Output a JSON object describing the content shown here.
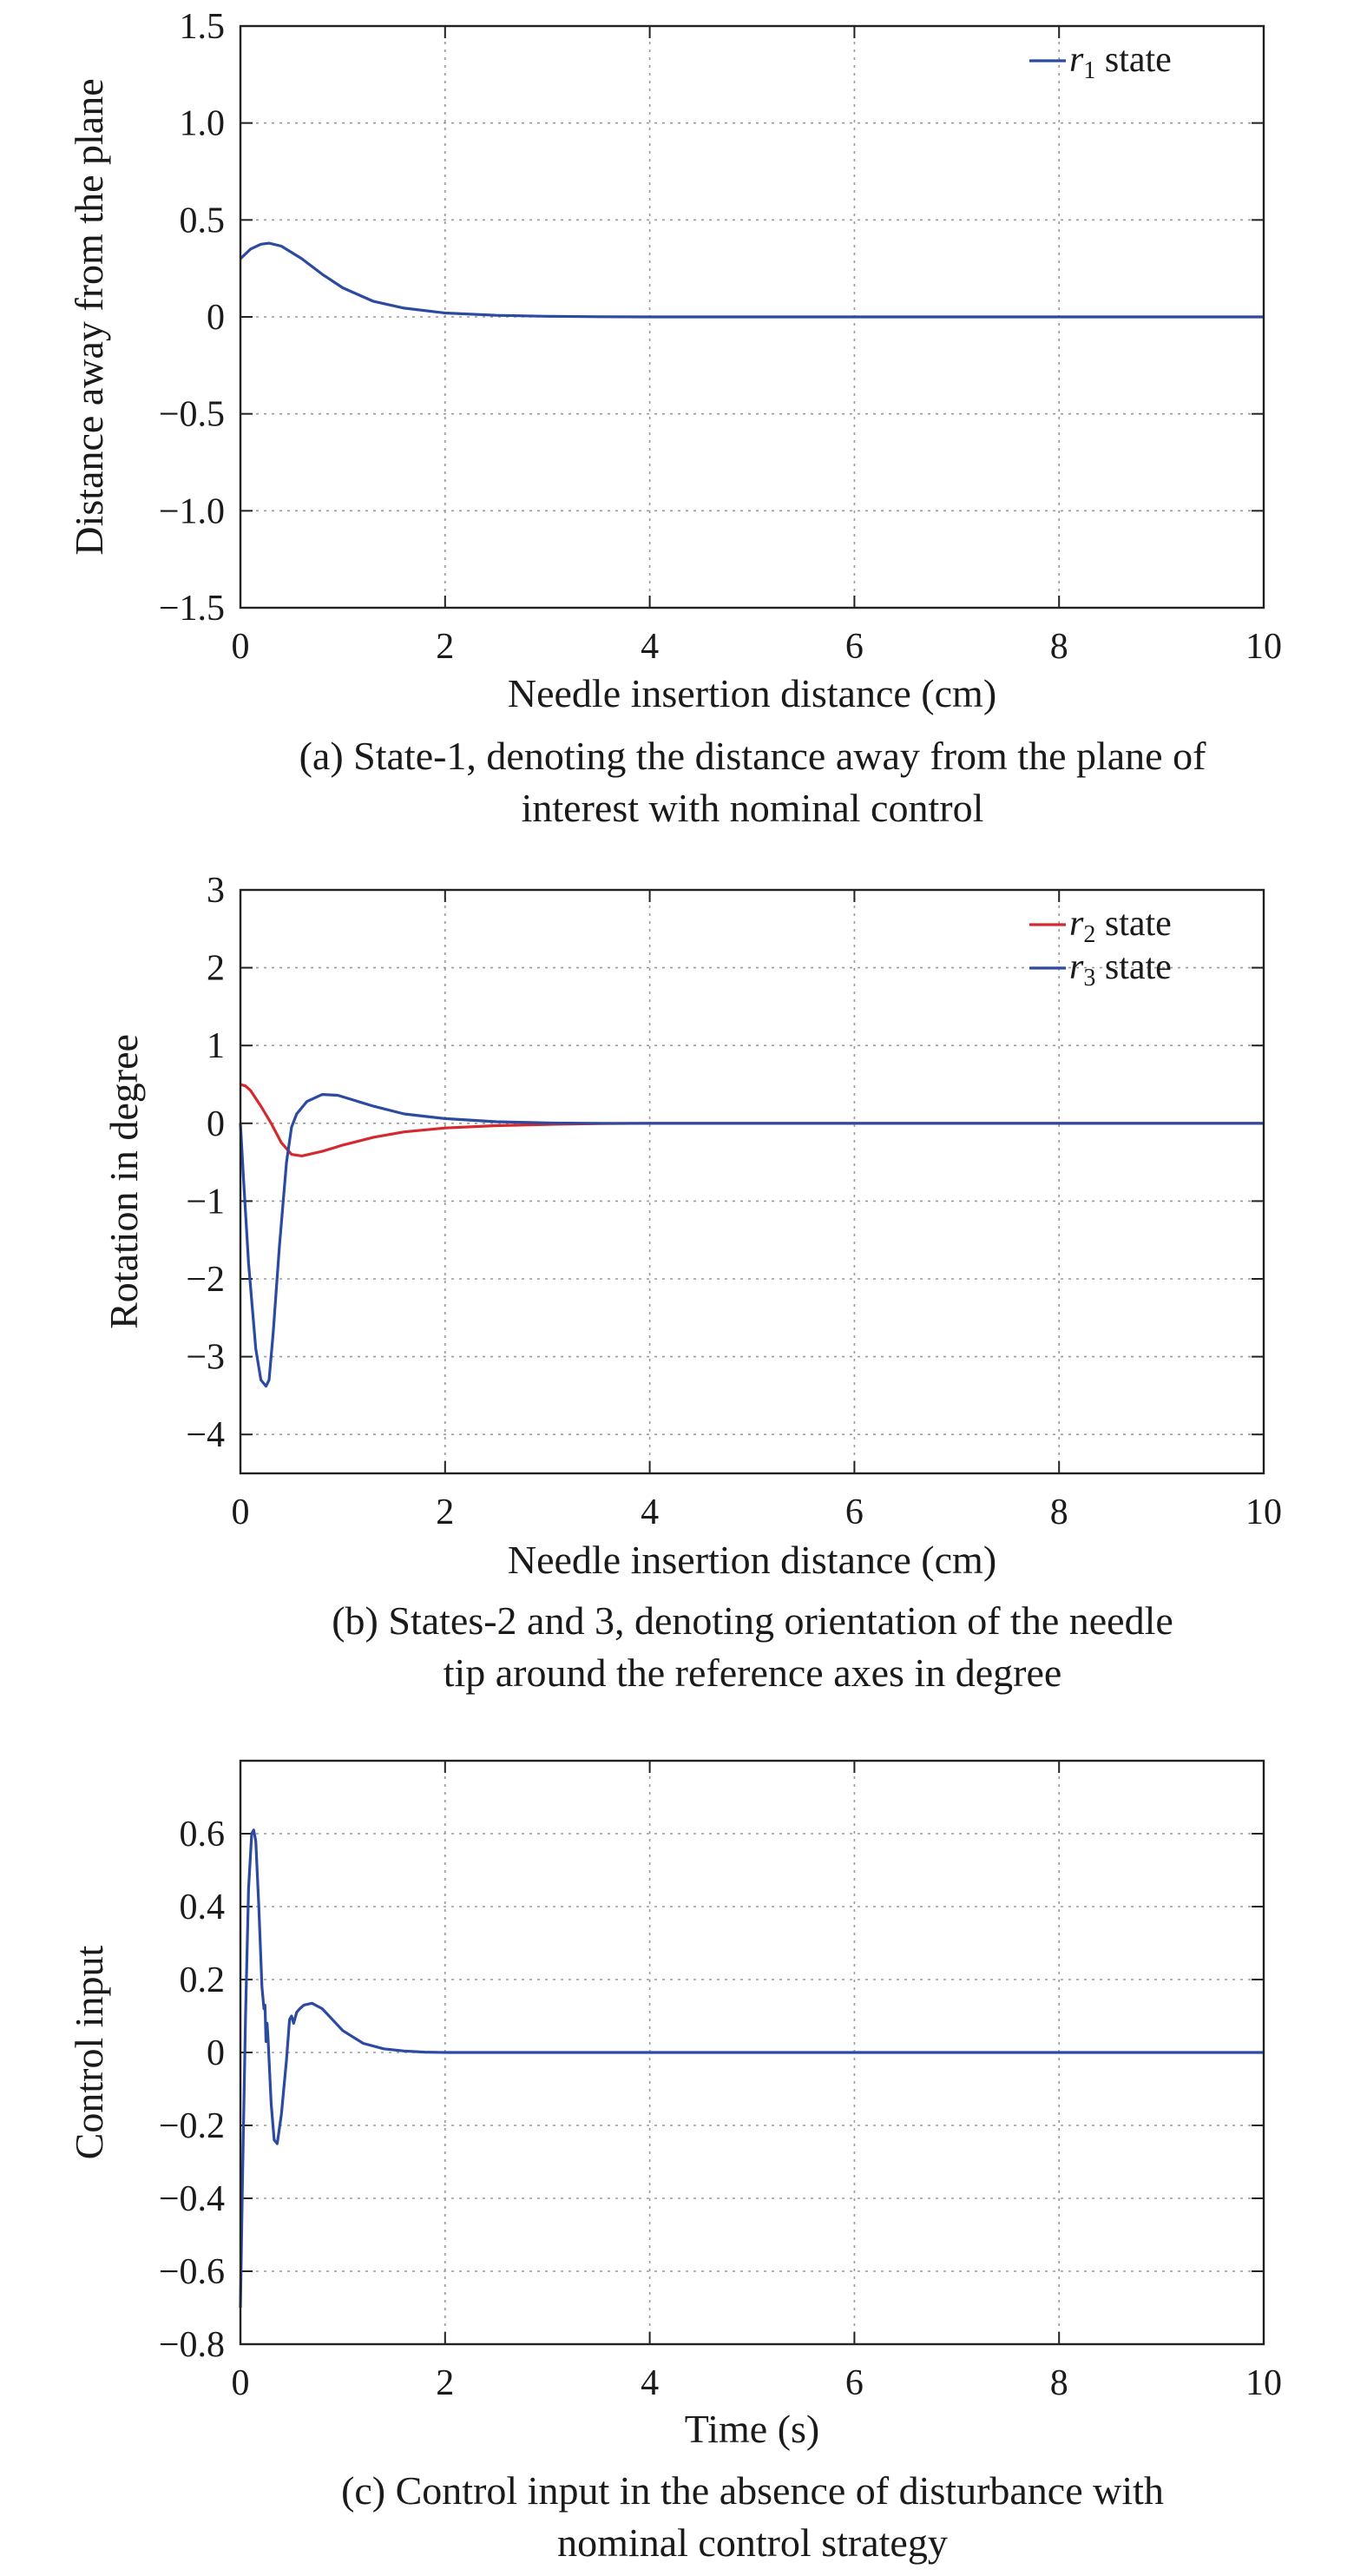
{
  "chart_data": [
    {
      "type": "line",
      "xlabel": "Needle insertion distance (cm)",
      "ylabel": "Distance away from the plane",
      "xlim": [
        0,
        10
      ],
      "ylim": [
        -1.5,
        1.5
      ],
      "xticks": [
        "0",
        "2",
        "4",
        "6",
        "8",
        "10"
      ],
      "yticks": [
        "1.5",
        "1.0",
        "0.5",
        "0",
        "−0.5",
        "−1.0",
        "−1.5"
      ],
      "grid": true,
      "legend_position": "top-right",
      "caption_lines": [
        "(a) State-1, denoting the distance away from the plane of",
        "interest with nominal control"
      ],
      "series": [
        {
          "name": "r1 state",
          "legend_var": "r",
          "legend_sub": "1",
          "legend_suffix": " state",
          "color": "#2b4aa0",
          "x": [
            0,
            0.1,
            0.2,
            0.28,
            0.4,
            0.6,
            0.8,
            1.0,
            1.3,
            1.6,
            2.0,
            2.5,
            3.0,
            3.5,
            4.0,
            5.0,
            6.0,
            7.0,
            8.0,
            9.0,
            10.0
          ],
          "y": [
            0.3,
            0.35,
            0.375,
            0.38,
            0.365,
            0.3,
            0.22,
            0.15,
            0.08,
            0.045,
            0.02,
            0.008,
            0.003,
            0.001,
            0.0,
            0.0,
            0.0,
            0.0,
            0.0,
            0.0,
            0.0
          ]
        }
      ]
    },
    {
      "type": "line",
      "xlabel": "Needle insertion distance (cm)",
      "ylabel": "Rotation in degree",
      "xlim": [
        0,
        10
      ],
      "ylim": [
        -4.5,
        3
      ],
      "xticks": [
        "0",
        "2",
        "4",
        "6",
        "8",
        "10"
      ],
      "yticks": [
        "3",
        "2",
        "1",
        "0",
        "−1",
        "−2",
        "−3",
        "−4"
      ],
      "grid": true,
      "legend_position": "top-right",
      "caption_lines": [
        "(b) States-2 and 3, denoting orientation of the needle",
        "tip around the reference axes in degree"
      ],
      "series": [
        {
          "name": "r2 state",
          "legend_var": "r",
          "legend_sub": "2",
          "legend_suffix": " state",
          "color": "#d42a2f",
          "x": [
            0,
            0.05,
            0.1,
            0.2,
            0.3,
            0.4,
            0.5,
            0.6,
            0.8,
            1.0,
            1.3,
            1.6,
            2.0,
            2.5,
            3.0,
            3.5,
            4.0,
            5.0,
            6.0,
            7.0,
            8.0,
            9.0,
            10.0
          ],
          "y": [
            0.5,
            0.48,
            0.42,
            0.22,
            0.0,
            -0.25,
            -0.4,
            -0.42,
            -0.36,
            -0.28,
            -0.18,
            -0.11,
            -0.06,
            -0.03,
            -0.015,
            -0.005,
            0.0,
            0.0,
            0.0,
            0.0,
            0.0,
            0.0,
            0.0
          ]
        },
        {
          "name": "r3 state",
          "legend_var": "r",
          "legend_sub": "3",
          "legend_suffix": " state",
          "color": "#2b4aa0",
          "x": [
            0,
            0.03,
            0.08,
            0.15,
            0.2,
            0.25,
            0.28,
            0.32,
            0.38,
            0.45,
            0.5,
            0.55,
            0.65,
            0.8,
            0.95,
            1.1,
            1.3,
            1.6,
            2.0,
            2.5,
            3.0,
            3.5,
            4.0,
            5.0,
            6.0,
            7.0,
            8.0,
            9.0,
            10.0
          ],
          "y": [
            0.0,
            -0.7,
            -1.8,
            -2.9,
            -3.3,
            -3.38,
            -3.3,
            -2.7,
            -1.6,
            -0.5,
            -0.05,
            0.12,
            0.28,
            0.37,
            0.36,
            0.3,
            0.22,
            0.12,
            0.06,
            0.02,
            0.005,
            0.0,
            0.0,
            0.0,
            0.0,
            0.0,
            0.0,
            0.0,
            0.0
          ]
        }
      ]
    },
    {
      "type": "line",
      "xlabel": "Time (s)",
      "ylabel": "Control input",
      "xlim": [
        0,
        10
      ],
      "ylim": [
        -0.8,
        0.8
      ],
      "xticks": [
        "0",
        "2",
        "4",
        "6",
        "8",
        "10"
      ],
      "yticks": [
        "0.6",
        "0.4",
        "0.2",
        "0",
        "−0.2",
        "−0.4",
        "−0.6",
        "−0.8"
      ],
      "grid": true,
      "caption_lines": [
        "(c) Control input in the absence of disturbance with",
        "nominal control strategy"
      ],
      "series": [
        {
          "color": "#2b4aa0",
          "x": [
            0,
            0.02,
            0.05,
            0.08,
            0.11,
            0.13,
            0.15,
            0.18,
            0.21,
            0.23,
            0.24,
            0.25,
            0.26,
            0.27,
            0.3,
            0.33,
            0.36,
            0.4,
            0.45,
            0.48,
            0.5,
            0.52,
            0.55,
            0.58,
            0.62,
            0.7,
            0.8,
            0.9,
            1.0,
            1.2,
            1.4,
            1.6,
            1.8,
            2.0,
            2.5,
            3.0,
            4.0,
            5.0,
            6.0,
            7.0,
            8.0,
            9.0,
            10.0
          ],
          "y": [
            -0.7,
            -0.35,
            0.1,
            0.45,
            0.6,
            0.61,
            0.58,
            0.4,
            0.18,
            0.12,
            0.13,
            0.03,
            0.08,
            0.04,
            -0.14,
            -0.24,
            -0.25,
            -0.17,
            -0.02,
            0.09,
            0.1,
            0.08,
            0.11,
            0.12,
            0.13,
            0.135,
            0.12,
            0.09,
            0.06,
            0.025,
            0.01,
            0.004,
            0.001,
            0.0,
            0.0,
            0.0,
            0.0,
            0.0,
            0.0,
            0.0,
            0.0,
            0.0,
            0.0
          ]
        }
      ]
    }
  ]
}
